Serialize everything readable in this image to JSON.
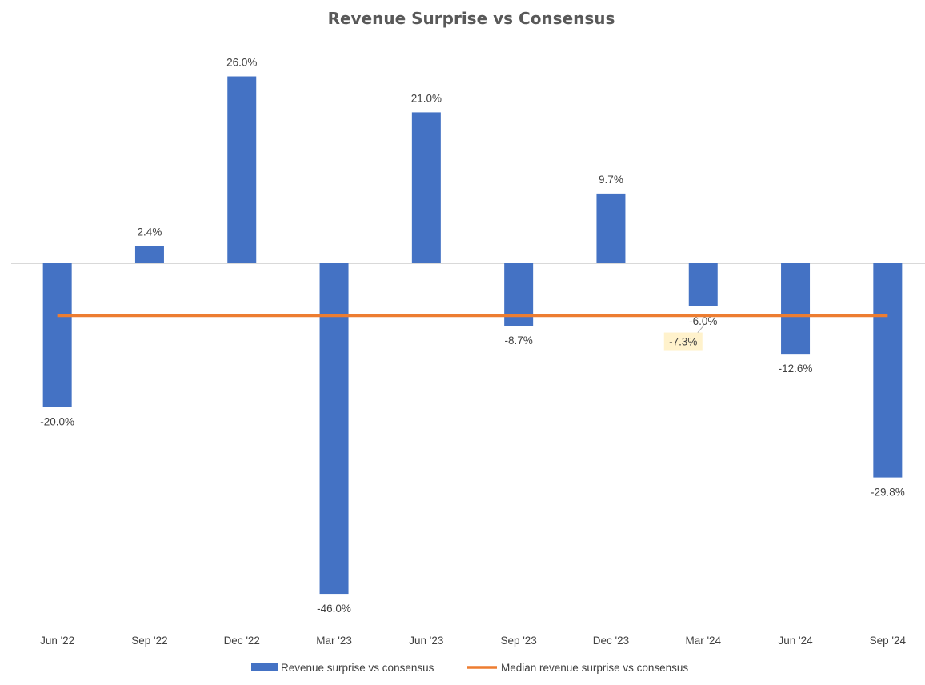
{
  "chart_data": {
    "type": "bar",
    "title": "Revenue Surprise vs Consensus",
    "xlabel": "",
    "ylabel": "",
    "categories": [
      "Jun '22",
      "Sep '22",
      "Dec '22",
      "Mar '23",
      "Jun '23",
      "Sep '23",
      "Dec '23",
      "Mar '24",
      "Jun '24",
      "Sep '24"
    ],
    "series": [
      {
        "name": "Revenue surprise vs consensus",
        "type": "bar",
        "color": "#4472C4",
        "values": [
          -20.0,
          2.4,
          26.0,
          -46.0,
          21.0,
          -8.7,
          9.7,
          -6.0,
          -12.6,
          -29.8
        ],
        "labels": [
          "-20.0%",
          "2.4%",
          "26.0%",
          "-46.0%",
          "21.0%",
          "-8.7%",
          "9.7%",
          "-6.0%",
          "-12.6%",
          "-29.8%"
        ]
      },
      {
        "name": "Median revenue surprise vs consensus",
        "type": "line",
        "color": "#ED7D31",
        "value": -7.3,
        "label": "-7.3%",
        "label_category": "Mar '24"
      }
    ],
    "ylim": [
      -50,
      30
    ],
    "grid": false,
    "legend": "bottom",
    "colors": {
      "title": "#595959",
      "text": "#404040",
      "axis_line": "#D9D9D9",
      "callout_fill": "#FFF2CC",
      "callout_leader": "#A6A6A6"
    }
  }
}
